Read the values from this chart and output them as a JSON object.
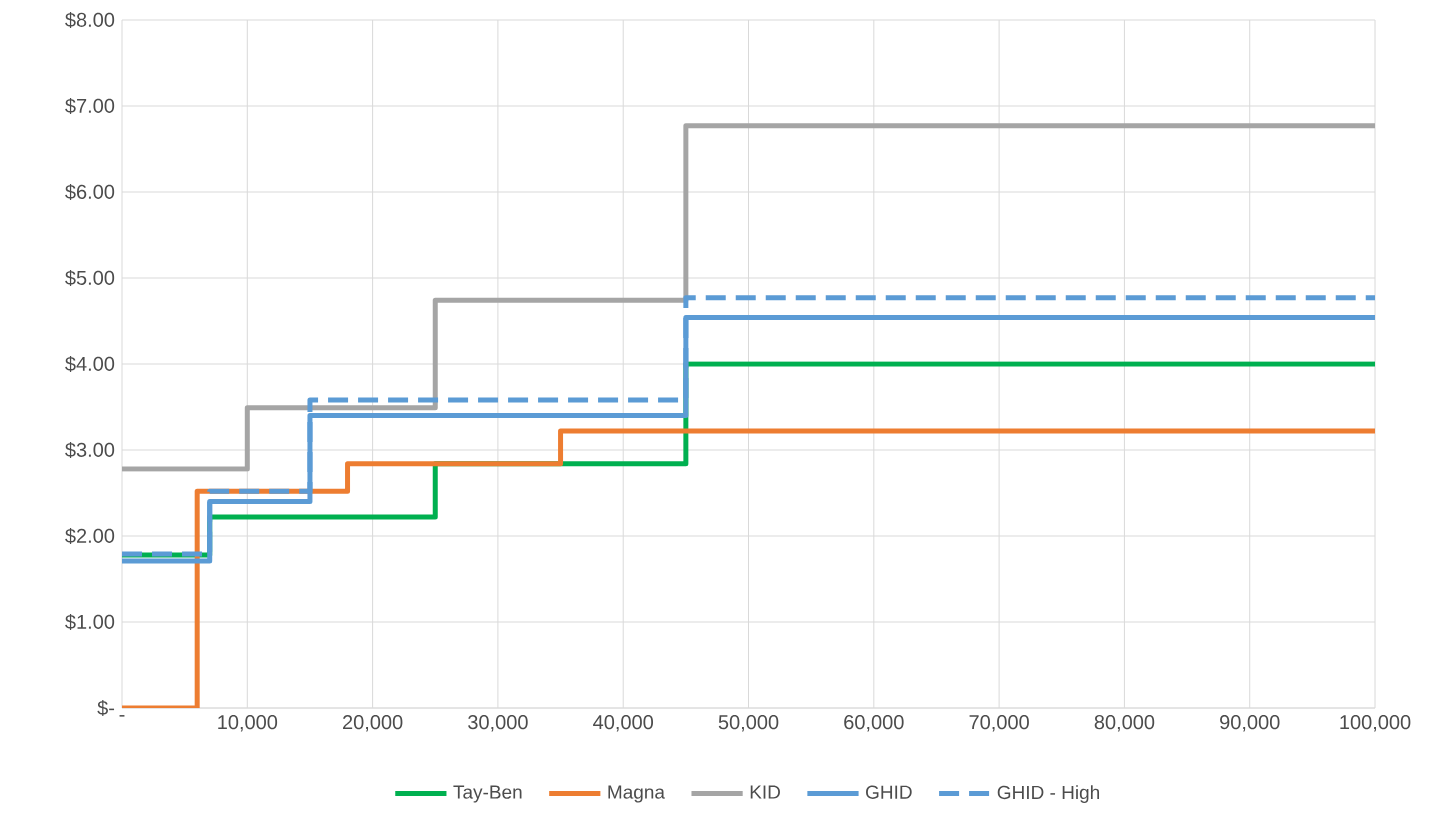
{
  "chart_data": {
    "type": "step",
    "series": [
      {
        "name": "Tay-Ben",
        "color": "#00b050",
        "line_style": "solid",
        "x": [
          0,
          7000,
          25000,
          45000,
          100000
        ],
        "values": [
          1.78,
          2.22,
          2.84,
          4.0,
          4.0
        ]
      },
      {
        "name": "Magna",
        "color": "#ed7d31",
        "line_style": "solid",
        "x": [
          0,
          6000,
          18000,
          35000,
          100000
        ],
        "values": [
          0,
          2.52,
          2.84,
          3.22,
          3.22
        ]
      },
      {
        "name": "KID",
        "color": "#a5a5a5",
        "line_style": "solid",
        "x": [
          0,
          10000,
          25000,
          45000,
          100000
        ],
        "values": [
          2.78,
          3.49,
          4.74,
          6.77,
          6.77
        ]
      },
      {
        "name": "GHID",
        "color": "#5b9bd5",
        "line_style": "solid",
        "x": [
          0,
          7000,
          15000,
          45000,
          100000
        ],
        "values": [
          1.71,
          2.4,
          3.4,
          4.54,
          4.54
        ]
      },
      {
        "name": "GHID - High",
        "color": "#5b9bd5",
        "line_style": "dashed",
        "x": [
          0,
          7000,
          15000,
          45000,
          100000
        ],
        "values": [
          1.79,
          2.52,
          3.58,
          4.77,
          4.77
        ]
      }
    ],
    "xlim": [
      0,
      100000
    ],
    "xticks": [
      {
        "value": 0,
        "label": "-"
      },
      {
        "value": 10000,
        "label": "10,000"
      },
      {
        "value": 20000,
        "label": "20,000"
      },
      {
        "value": 30000,
        "label": "30,000"
      },
      {
        "value": 40000,
        "label": "40,000"
      },
      {
        "value": 50000,
        "label": "50,000"
      },
      {
        "value": 60000,
        "label": "60,000"
      },
      {
        "value": 70000,
        "label": "70,000"
      },
      {
        "value": 80000,
        "label": "80,000"
      },
      {
        "value": 90000,
        "label": "90,000"
      },
      {
        "value": 100000,
        "label": "100,000"
      }
    ],
    "ylim": [
      0,
      8
    ],
    "yticks": [
      {
        "value": 0,
        "label": "$-"
      },
      {
        "value": 1,
        "label": "$1.00"
      },
      {
        "value": 2,
        "label": "$2.00"
      },
      {
        "value": 3,
        "label": "$3.00"
      },
      {
        "value": 4,
        "label": "$4.00"
      },
      {
        "value": 5,
        "label": "$5.00"
      },
      {
        "value": 6,
        "label": "$6.00"
      },
      {
        "value": 7,
        "label": "$7.00"
      },
      {
        "value": 8,
        "label": "$8.00"
      }
    ],
    "grid": true,
    "legend": "bottom",
    "marker": "none"
  }
}
